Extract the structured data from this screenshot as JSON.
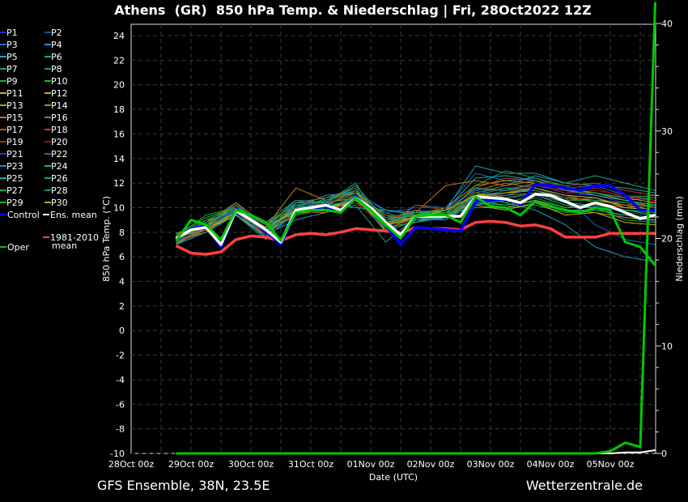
{
  "chart_data": {
    "type": "line",
    "title": "Athens  (GR)  850 hPa Temp. & Niederschlag | Fri, 28Oct2022 12Z",
    "xlabel": "Date (UTC)",
    "ylabel": "850 hPa Temp. (°C)",
    "y2label": "Niederschlag (mm)",
    "ylim": [
      -10,
      25
    ],
    "y2lim": [
      0,
      40
    ],
    "yticks": [
      "24",
      "22",
      "20",
      "18",
      "16",
      "14",
      "12",
      "10",
      "8",
      "6",
      "4",
      "2",
      "0",
      "-2",
      "-4",
      "-6",
      "-8",
      "-10"
    ],
    "y2ticks": [
      "40",
      "30",
      "20",
      "10",
      "0"
    ],
    "xticks": [
      "28Oct 00z",
      "29Oct 00z",
      "30Oct 00z",
      "31Oct 00z",
      "01Nov 00z",
      "02Nov 00z",
      "03Nov 00z",
      "04Nov 00z",
      "05Nov 00z"
    ],
    "x_start_hours": 18,
    "step_hours": 6,
    "member_step_hours": 12,
    "grid": true,
    "legend_position": "left",
    "series": [
      {
        "name": "Ens. mean",
        "color": "#ffffff",
        "width": 3.5,
        "values": [
          7.5,
          8.2,
          8.4,
          7.0,
          9.8,
          9.0,
          8.2,
          7.2,
          9.8,
          10.0,
          10.2,
          9.8,
          10.8,
          10.0,
          8.8,
          7.8,
          9.3,
          9.3,
          9.3,
          9.3,
          10.9,
          10.8,
          10.7,
          10.4,
          11.1,
          11.0,
          10.5,
          10.0,
          10.4,
          10.1,
          9.6,
          9.1,
          9.4
        ]
      },
      {
        "name": "Control",
        "color": "#0000ff",
        "width": 3.5,
        "values": [
          7.4,
          8.3,
          8.5,
          6.8,
          9.9,
          9.0,
          8.1,
          7.0,
          9.7,
          9.9,
          10.1,
          9.7,
          10.9,
          9.9,
          8.6,
          7.0,
          8.4,
          8.3,
          8.2,
          8.1,
          10.5,
          10.6,
          10.7,
          10.3,
          11.9,
          11.8,
          11.6,
          11.4,
          11.8,
          11.8,
          11.0,
          9.8,
          9.8
        ]
      },
      {
        "name": "Oper",
        "color": "#00c800",
        "width": 3,
        "values": [
          7.3,
          9.0,
          8.6,
          7.4,
          9.8,
          9.4,
          8.8,
          7.3,
          9.6,
          9.8,
          9.8,
          9.6,
          10.8,
          9.8,
          8.6,
          7.5,
          9.3,
          9.4,
          9.4,
          8.8,
          10.9,
          10.1,
          10.0,
          9.4,
          10.5,
          10.1,
          9.8,
          9.6,
          10.0,
          9.8,
          7.2,
          6.8,
          5.3
        ]
      },
      {
        "name": "1981-2010 mean",
        "color": "#ff4040",
        "width": 3.5,
        "values": [
          6.9,
          6.3,
          6.2,
          6.4,
          7.4,
          7.7,
          7.6,
          7.3,
          7.8,
          7.9,
          7.8,
          8.0,
          8.3,
          8.2,
          8.1,
          7.9,
          8.4,
          8.3,
          8.3,
          8.2,
          8.8,
          8.9,
          8.8,
          8.5,
          8.6,
          8.3,
          7.6,
          7.6,
          7.6,
          7.9,
          7.9,
          7.9,
          7.9
        ]
      }
    ],
    "precip_oper": [
      0,
      0,
      0,
      0,
      0,
      0,
      0,
      0,
      0,
      0,
      0,
      0,
      0,
      0,
      0,
      0,
      0,
      0,
      0,
      0,
      0,
      0,
      0,
      0,
      0,
      0,
      0,
      0,
      0,
      0.2,
      1.0,
      0.6,
      42
    ],
    "precip_mean": [
      0,
      0,
      0,
      0,
      0,
      0,
      0,
      0,
      0,
      0,
      0,
      0,
      0,
      0,
      0,
      0,
      0,
      0,
      0,
      0,
      0,
      0,
      0,
      0,
      0,
      0,
      0,
      0,
      0,
      0,
      0.1,
      0.1,
      0.3
    ],
    "members": [
      {
        "name": "P1",
        "color": "#2828c8",
        "values": [
          7.6,
          8.6,
          10.2,
          8.0,
          10.2,
          10.5,
          11.0,
          8.4,
          9.8,
          9.6,
          11.5,
          11.4,
          11.8,
          11.2,
          11.0,
          10.4,
          10.0
        ]
      },
      {
        "name": "P2",
        "color": "#1848b8",
        "values": [
          7.2,
          8.0,
          9.5,
          7.6,
          9.4,
          9.8,
          10.4,
          9.2,
          9.0,
          9.0,
          10.4,
          10.2,
          10.6,
          10.0,
          10.1,
          9.2,
          8.9
        ]
      },
      {
        "name": "P3",
        "color": "#1870c0",
        "values": [
          7.8,
          8.8,
          10.0,
          8.6,
          10.4,
          10.8,
          11.4,
          8.2,
          10.2,
          10.0,
          12.8,
          12.2,
          12.4,
          11.6,
          11.8,
          11.0,
          10.6
        ]
      },
      {
        "name": "P4",
        "color": "#1898c8",
        "values": [
          7.4,
          8.2,
          9.6,
          7.8,
          9.0,
          9.6,
          10.6,
          9.6,
          8.8,
          9.2,
          11.0,
          10.4,
          9.8,
          8.6,
          6.8,
          6.0,
          5.6
        ]
      },
      {
        "name": "P5",
        "color": "#18a8b0",
        "values": [
          7.0,
          8.4,
          10.4,
          8.2,
          10.0,
          11.0,
          11.2,
          9.8,
          9.6,
          9.8,
          13.4,
          12.8,
          12.8,
          12.0,
          11.8,
          11.6,
          11.2
        ]
      },
      {
        "name": "P6",
        "color": "#18a890",
        "values": [
          7.9,
          8.6,
          9.8,
          8.8,
          10.6,
          10.4,
          12.0,
          8.0,
          9.4,
          9.0,
          11.2,
          11.8,
          12.6,
          12.0,
          12.6,
          12.0,
          11.4
        ]
      },
      {
        "name": "P7",
        "color": "#18a070",
        "values": [
          7.3,
          9.0,
          9.4,
          7.4,
          9.8,
          10.0,
          10.2,
          7.2,
          9.2,
          9.6,
          10.0,
          10.0,
          10.2,
          9.6,
          9.8,
          9.4,
          9.0
        ]
      },
      {
        "name": "P8",
        "color": "#18a050",
        "values": [
          7.6,
          9.4,
          10.0,
          8.4,
          9.6,
          10.6,
          11.6,
          8.6,
          9.0,
          9.4,
          11.8,
          13.0,
          12.4,
          11.8,
          11.0,
          10.6,
          10.8
        ]
      },
      {
        "name": "P9",
        "color": "#18a830",
        "values": [
          7.5,
          8.8,
          9.6,
          8.0,
          10.2,
          9.8,
          10.6,
          8.8,
          9.8,
          9.2,
          10.6,
          10.2,
          10.6,
          10.0,
          10.0,
          9.0,
          8.8
        ]
      },
      {
        "name": "P10",
        "color": "#20b820",
        "values": [
          7.8,
          9.2,
          10.0,
          8.6,
          10.0,
          10.2,
          11.2,
          9.0,
          9.6,
          9.8,
          11.0,
          10.4,
          11.0,
          10.2,
          10.0,
          9.8,
          9.6
        ]
      },
      {
        "name": "P11",
        "color": "#b8b818",
        "values": [
          7.2,
          8.2,
          9.4,
          7.8,
          9.6,
          10.0,
          10.4,
          8.4,
          8.8,
          9.6,
          10.2,
          9.8,
          10.4,
          9.4,
          9.6,
          8.8,
          8.6
        ]
      },
      {
        "name": "P12",
        "color": "#c0b018",
        "values": [
          7.7,
          8.4,
          10.2,
          8.2,
          9.4,
          9.8,
          11.0,
          8.8,
          9.2,
          9.0,
          10.8,
          11.2,
          11.4,
          10.8,
          10.6,
          10.2,
          9.8
        ]
      },
      {
        "name": "P13",
        "color": "#c09018",
        "values": [
          7.4,
          8.0,
          9.8,
          8.0,
          9.8,
          10.4,
          10.8,
          8.2,
          9.4,
          10.0,
          11.8,
          12.2,
          12.0,
          11.6,
          11.2,
          10.8,
          10.4
        ]
      },
      {
        "name": "P14",
        "color": "#c08818",
        "values": [
          7.6,
          8.6,
          9.6,
          8.4,
          11.6,
          10.6,
          11.2,
          9.4,
          9.0,
          9.4,
          10.4,
          10.0,
          10.6,
          9.8,
          9.6,
          9.2,
          9.0
        ]
      },
      {
        "name": "P15",
        "color": "#c07818",
        "values": [
          7.1,
          8.2,
          9.8,
          7.6,
          10.2,
          10.2,
          11.4,
          8.6,
          9.6,
          11.8,
          12.2,
          11.8,
          12.2,
          11.4,
          11.2,
          10.6,
          10.0
        ]
      },
      {
        "name": "P16",
        "color": "#b86818",
        "values": [
          7.9,
          8.8,
          10.4,
          8.6,
          9.6,
          9.6,
          10.8,
          9.0,
          9.8,
          9.2,
          11.4,
          12.0,
          11.6,
          11.0,
          10.4,
          10.0,
          10.2
        ]
      },
      {
        "name": "P17",
        "color": "#b05818",
        "values": [
          7.5,
          8.4,
          9.4,
          8.0,
          10.4,
          10.8,
          11.6,
          8.2,
          9.2,
          9.4,
          10.6,
          11.0,
          11.2,
          10.6,
          10.8,
          10.2,
          10.4
        ]
      },
      {
        "name": "P18",
        "color": "#b04018",
        "values": [
          7.3,
          8.0,
          10.0,
          8.8,
          10.0,
          10.0,
          10.6,
          8.6,
          10.2,
          9.8,
          11.6,
          12.4,
          12.2,
          11.8,
          12.0,
          11.4,
          11.0
        ]
      },
      {
        "name": "P19",
        "color": "#a02818",
        "values": [
          7.7,
          8.6,
          9.8,
          8.2,
          9.8,
          10.4,
          11.0,
          9.2,
          9.4,
          9.4,
          11.2,
          11.6,
          11.8,
          11.4,
          11.6,
          10.8,
          10.6
        ]
      },
      {
        "name": "P20",
        "color": "#901818",
        "values": [
          7.4,
          8.2,
          10.2,
          8.4,
          9.4,
          9.8,
          10.4,
          8.4,
          9.0,
          9.6,
          10.8,
          11.2,
          12.0,
          11.2,
          11.4,
          11.0,
          10.8
        ]
      },
      {
        "name": "P21",
        "color": "#1840c0",
        "values": [
          7.6,
          8.8,
          9.6,
          7.8,
          10.0,
          10.6,
          11.4,
          9.6,
          10.0,
          10.0,
          11.4,
          10.8,
          11.0,
          10.4,
          10.2,
          9.6,
          9.4
        ]
      },
      {
        "name": "P22",
        "color": "#1868c0",
        "values": [
          7.2,
          8.4,
          9.8,
          8.0,
          10.2,
          10.2,
          10.6,
          8.8,
          9.6,
          9.4,
          10.8,
          11.4,
          11.6,
          10.8,
          8.6,
          7.4,
          7.0
        ]
      },
      {
        "name": "P23",
        "color": "#1890c0",
        "values": [
          7.8,
          8.6,
          10.0,
          8.6,
          9.6,
          10.8,
          11.2,
          8.6,
          9.2,
          9.0,
          11.0,
          11.0,
          11.6,
          11.0,
          10.8,
          10.0,
          9.8
        ]
      },
      {
        "name": "P24",
        "color": "#18a8c0",
        "values": [
          7.0,
          8.0,
          9.4,
          7.6,
          10.4,
          10.4,
          10.0,
          9.8,
          9.4,
          9.8,
          12.4,
          12.6,
          12.2,
          11.4,
          11.0,
          10.6,
          10.2
        ]
      },
      {
        "name": "P25",
        "color": "#18a898",
        "values": [
          7.5,
          8.6,
          10.2,
          8.2,
          9.8,
          9.8,
          11.0,
          8.0,
          9.0,
          9.2,
          10.2,
          10.6,
          10.4,
          9.8,
          9.8,
          9.4,
          9.2
        ]
      },
      {
        "name": "P26",
        "color": "#18a878",
        "values": [
          7.6,
          8.4,
          9.6,
          8.4,
          10.6,
          10.4,
          11.8,
          9.0,
          9.4,
          9.6,
          11.6,
          11.4,
          12.0,
          11.6,
          11.2,
          10.8,
          11.0
        ]
      },
      {
        "name": "P27",
        "color": "#18a058",
        "values": [
          7.3,
          8.8,
          9.8,
          8.0,
          9.4,
          10.0,
          10.8,
          8.4,
          8.8,
          9.4,
          10.4,
          10.2,
          10.8,
          10.0,
          10.4,
          9.8,
          9.6
        ]
      },
      {
        "name": "P28",
        "color": "#18a040",
        "values": [
          7.8,
          9.0,
          10.0,
          8.8,
          10.2,
          10.6,
          11.4,
          9.2,
          9.6,
          9.6,
          11.0,
          11.6,
          11.4,
          10.6,
          10.6,
          10.4,
          10.0
        ]
      },
      {
        "name": "P29",
        "color": "#20b020",
        "values": [
          7.4,
          8.6,
          10.2,
          8.2,
          10.0,
          10.2,
          11.2,
          8.8,
          9.4,
          9.2,
          11.2,
          10.8,
          11.2,
          10.4,
          10.2,
          9.8,
          9.4
        ]
      },
      {
        "name": "P30",
        "color": "#b8b018",
        "values": [
          7.6,
          8.2,
          9.6,
          8.4,
          9.8,
          10.0,
          10.6,
          8.6,
          9.2,
          9.8,
          11.0,
          11.2,
          11.6,
          11.0,
          10.8,
          10.0,
          9.8
        ]
      }
    ],
    "legend": {
      "control": {
        "label": "Control",
        "color": "#0000ff"
      },
      "mean": {
        "label": "Ens. mean",
        "color": "#ffffff"
      },
      "clim": {
        "label": "1981-2010",
        "label2": "mean",
        "color": "#ff4040"
      },
      "oper": {
        "label": "Oper",
        "color": "#00c800"
      }
    }
  },
  "footer": {
    "left": "GFS Ensemble, 38N, 23.5E",
    "right": "Wetterzentrale.de"
  }
}
